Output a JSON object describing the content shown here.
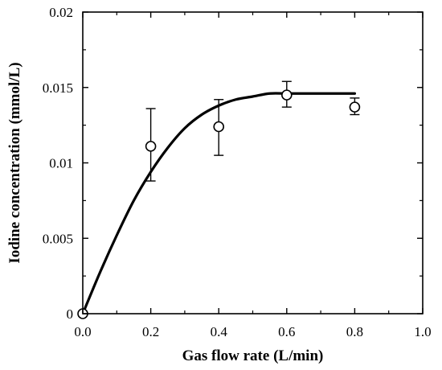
{
  "chart_data": {
    "type": "scatter",
    "xlabel": "Gas flow rate (L/min)",
    "ylabel": "Iodine concentration (mmol/L)",
    "xlim": [
      0.0,
      1.0
    ],
    "ylim": [
      0,
      0.02
    ],
    "x_ticks": [
      "0.0",
      "0.2",
      "0.4",
      "0.6",
      "0.8",
      "1.0"
    ],
    "y_ticks": [
      "0",
      "0.005",
      "0.01",
      "0.015",
      "0.02"
    ],
    "grid": false,
    "series": [
      {
        "marker": "open-circle",
        "x": [
          0.0,
          0.2,
          0.4,
          0.6,
          0.8
        ],
        "y": [
          0.0,
          0.0111,
          0.0124,
          0.0145,
          0.0137
        ],
        "err_low": [
          0.0,
          0.0088,
          0.0105,
          0.0137,
          0.0132
        ],
        "err_high": [
          0.0,
          0.0136,
          0.0142,
          0.0154,
          0.0143
        ]
      }
    ],
    "fit_curve": {
      "style": "solid-black",
      "x": [
        0.0,
        0.05,
        0.1,
        0.15,
        0.2,
        0.25,
        0.3,
        0.35,
        0.4,
        0.45,
        0.5,
        0.55,
        0.6,
        0.65,
        0.7,
        0.75,
        0.8
      ],
      "y": [
        0.0,
        0.0027,
        0.0052,
        0.0075,
        0.0094,
        0.011,
        0.0123,
        0.0132,
        0.0138,
        0.0142,
        0.0144,
        0.0146,
        0.0146,
        0.0146,
        0.0146,
        0.0146,
        0.0146
      ]
    },
    "colors": {
      "line": "#000000",
      "background": "#ffffff"
    }
  }
}
